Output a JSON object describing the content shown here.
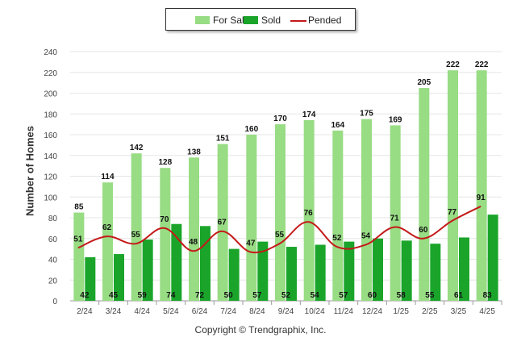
{
  "chart_data": {
    "type": "bar",
    "categories": [
      "2/24",
      "3/24",
      "4/24",
      "5/24",
      "6/24",
      "7/24",
      "8/24",
      "9/24",
      "10/24",
      "11/24",
      "12/24",
      "1/25",
      "2/25",
      "3/25",
      "4/25"
    ],
    "series": [
      {
        "name": "For Sale",
        "type": "bar",
        "color": "#98dc84",
        "values": [
          85,
          114,
          142,
          128,
          138,
          151,
          160,
          170,
          174,
          164,
          175,
          169,
          205,
          222,
          222
        ]
      },
      {
        "name": "Sold",
        "type": "bar",
        "color": "#1aa52a",
        "values": [
          42,
          45,
          59,
          74,
          72,
          50,
          57,
          52,
          54,
          57,
          60,
          58,
          55,
          61,
          83
        ]
      },
      {
        "name": "Pended",
        "type": "line",
        "color": "#c41a1a",
        "values": [
          51,
          62,
          55,
          70,
          48,
          67,
          47,
          55,
          76,
          52,
          54,
          71,
          60,
          77,
          91
        ]
      }
    ],
    "ylabel": "Number of Homes",
    "xlabel": "",
    "ylim": [
      0,
      240
    ],
    "yticks": [
      0,
      20,
      40,
      60,
      80,
      100,
      120,
      140,
      160,
      180,
      200,
      220,
      240
    ],
    "grid": true,
    "legend_position": "top-center"
  },
  "legend": {
    "for_sale": "For Sale",
    "sold": "Sold",
    "pended": "Pended"
  },
  "footer": {
    "copyright": "Copyright © Trendgraphix, Inc."
  }
}
